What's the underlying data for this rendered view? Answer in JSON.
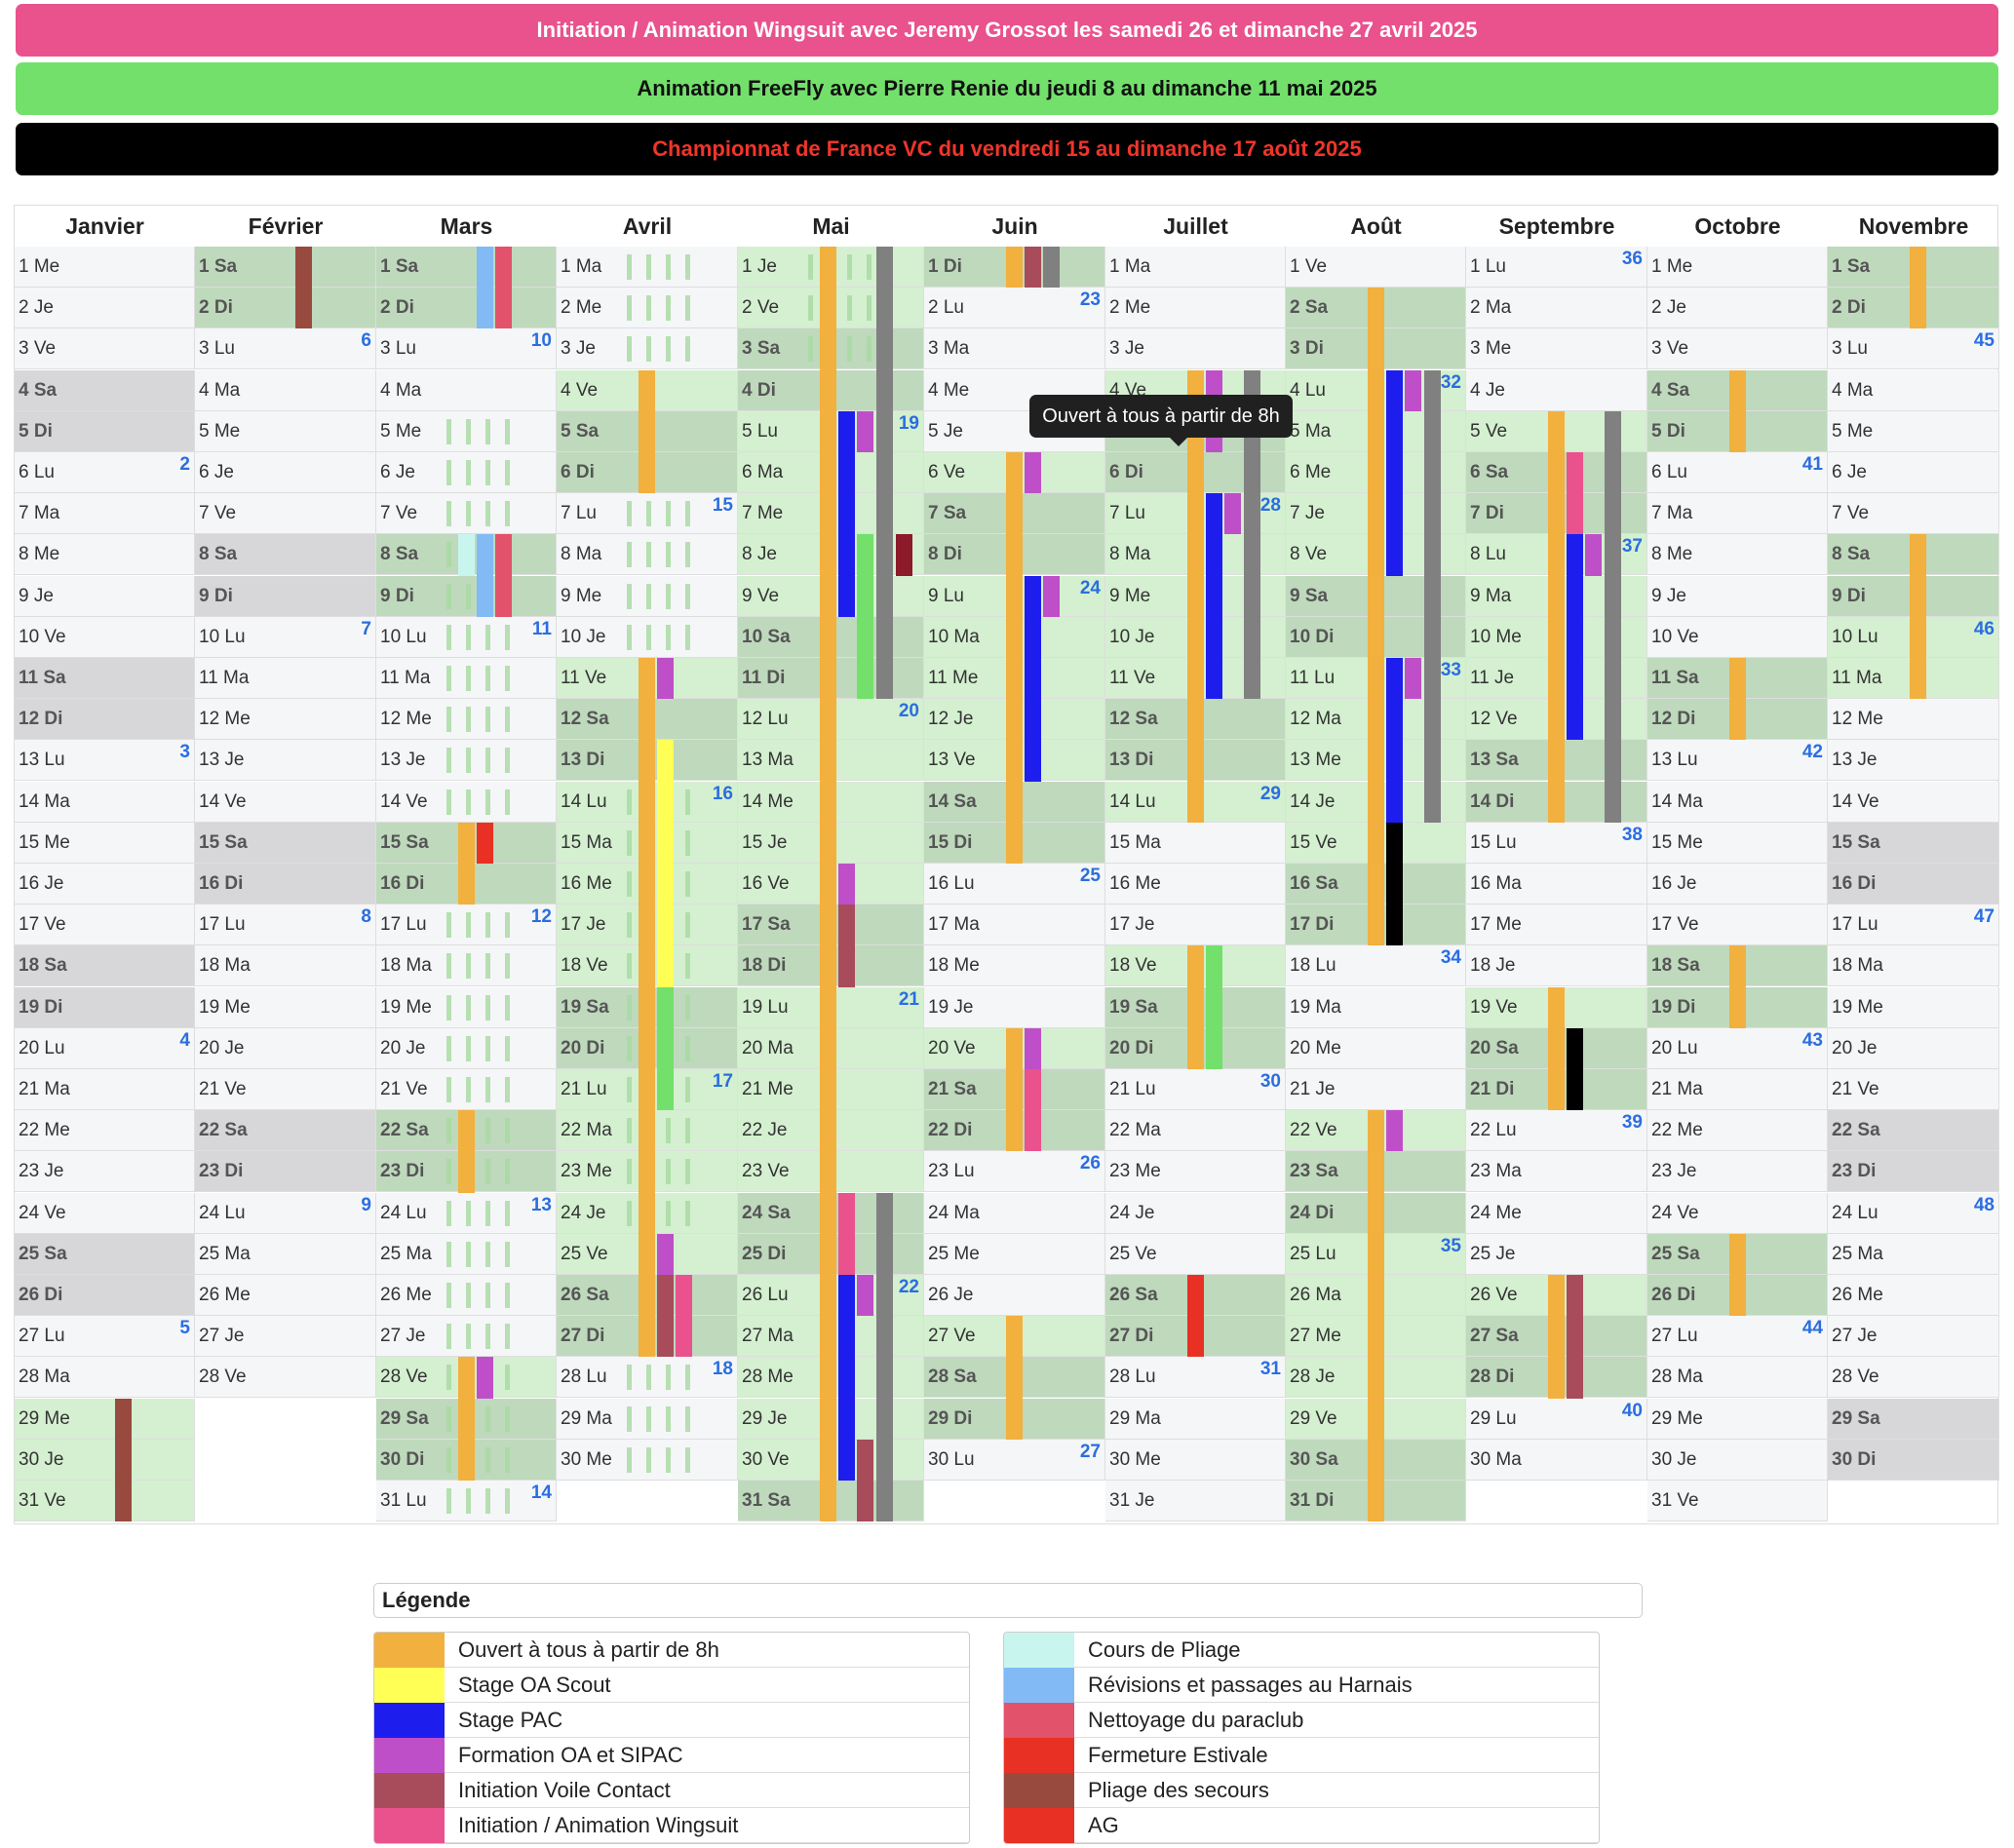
{
  "banners": [
    {
      "text": "Initiation / Animation Wingsuit avec Jeremy Grossot les samedi 26 et dimanche 27 avril 2025",
      "bg": "#e9528d",
      "color": "#ffffff"
    },
    {
      "text": "Animation FreeFly avec Pierre Renie du jeudi 8 au dimanche 11 mai 2025",
      "bg": "#73e06b",
      "color": "#111111"
    },
    {
      "text": "Championnat de France VC du vendredi 15 au dimanche 17 août 2025",
      "bg": "#000000",
      "color": "#f0352b"
    }
  ],
  "tooltip": "Ouvert à tous à partir de 8h",
  "day_abbrevs": [
    "Di",
    "Lu",
    "Ma",
    "Me",
    "Je",
    "Ve",
    "Sa"
  ],
  "months": [
    {
      "name": "Janvier",
      "days": 31,
      "first_dow": 3
    },
    {
      "name": "Février",
      "days": 28,
      "first_dow": 6
    },
    {
      "name": "Mars",
      "days": 31,
      "first_dow": 6
    },
    {
      "name": "Avril",
      "days": 30,
      "first_dow": 2
    },
    {
      "name": "Mai",
      "days": 31,
      "first_dow": 4
    },
    {
      "name": "Juin",
      "days": 30,
      "first_dow": 0
    },
    {
      "name": "Juillet",
      "days": 31,
      "first_dow": 2
    },
    {
      "name": "Août",
      "days": 31,
      "first_dow": 5
    },
    {
      "name": "Septembre",
      "days": 30,
      "first_dow": 1
    },
    {
      "name": "Octobre",
      "days": 31,
      "first_dow": 3
    },
    {
      "name": "Novembre",
      "days": 30,
      "first_dow": 6
    }
  ],
  "week_numbers": [
    [
      [
        6,
        2
      ],
      [
        13,
        3
      ],
      [
        20,
        4
      ],
      [
        27,
        5
      ]
    ],
    [
      [
        3,
        6
      ],
      [
        10,
        7
      ],
      [
        17,
        8
      ],
      [
        24,
        9
      ]
    ],
    [
      [
        3,
        10
      ],
      [
        10,
        11
      ],
      [
        17,
        12
      ],
      [
        24,
        13
      ],
      [
        31,
        14
      ]
    ],
    [
      [
        7,
        15
      ],
      [
        14,
        16
      ],
      [
        21,
        17
      ],
      [
        28,
        18
      ]
    ],
    [
      [
        5,
        19
      ],
      [
        12,
        20
      ],
      [
        19,
        21
      ],
      [
        26,
        22
      ]
    ],
    [
      [
        2,
        23
      ],
      [
        9,
        24
      ],
      [
        16,
        25
      ],
      [
        23,
        26
      ],
      [
        30,
        27
      ]
    ],
    [
      [
        7,
        28
      ],
      [
        14,
        29
      ],
      [
        21,
        30
      ],
      [
        28,
        31
      ]
    ],
    [
      [
        4,
        32
      ],
      [
        11,
        33
      ],
      [
        18,
        34
      ],
      [
        25,
        35
      ]
    ],
    [
      [
        1,
        36
      ],
      [
        8,
        37
      ],
      [
        15,
        38
      ],
      [
        22,
        39
      ],
      [
        29,
        40
      ]
    ],
    [
      [
        6,
        41
      ],
      [
        13,
        42
      ],
      [
        20,
        43
      ],
      [
        27,
        44
      ]
    ],
    [
      [
        3,
        45
      ],
      [
        10,
        46
      ],
      [
        17,
        47
      ],
      [
        24,
        48
      ]
    ]
  ],
  "legend_title": "Légende",
  "legend": [
    {
      "label": "Ouvert à tous à partir de 8h",
      "color": "#f2b03e"
    },
    {
      "label": "Stage OA Scout",
      "color": "#ffff55"
    },
    {
      "label": "Stage PAC",
      "color": "#1d1dee"
    },
    {
      "label": "Formation OA et SIPAC",
      "color": "#bf4fc8"
    },
    {
      "label": "Initiation Voile Contact",
      "color": "#a84b5a"
    },
    {
      "label": "Initiation / Animation Wingsuit",
      "color": "#e9528d"
    },
    {
      "label": "Cours de Pliage",
      "color": "#c8f5ee"
    },
    {
      "label": "Révisions et passages au Harnais",
      "color": "#82baf5"
    },
    {
      "label": "Nettoyage du paraclub",
      "color": "#e2526a"
    },
    {
      "label": "Fermeture Estivale",
      "color": "#e83025"
    },
    {
      "label": "Pliage des secours",
      "color": "#994a3f"
    },
    {
      "label": "AG",
      "color": "#e83025"
    }
  ],
  "events": [
    {
      "c": "#994a3f",
      "m": 0,
      "s": 29,
      "e": 31,
      "t": 1
    },
    {
      "c": "#994a3f",
      "m": 1,
      "s": 1,
      "e": 2,
      "t": 1
    },
    {
      "c": "#82baf5",
      "m": 2,
      "s": 1,
      "e": 2,
      "t": 1
    },
    {
      "c": "#e2526a",
      "m": 2,
      "s": 1,
      "e": 2,
      "t": 2
    },
    {
      "c": "#c8f5ee",
      "m": 2,
      "s": 8,
      "e": 8,
      "t": 0
    },
    {
      "c": "#82baf5",
      "m": 2,
      "s": 8,
      "e": 9,
      "t": 1
    },
    {
      "c": "#e2526a",
      "m": 2,
      "s": 8,
      "e": 9,
      "t": 2
    },
    {
      "c": "#f2b03e",
      "m": 2,
      "s": 15,
      "e": 16,
      "t": 0
    },
    {
      "c": "#e83025",
      "m": 2,
      "s": 15,
      "e": 15,
      "t": 1
    },
    {
      "c": "#f2b03e",
      "m": 2,
      "s": 22,
      "e": 23,
      "t": 0
    },
    {
      "c": "#f2b03e",
      "m": 2,
      "s": 28,
      "e": 30,
      "t": 0
    },
    {
      "c": "#bf4fc8",
      "m": 2,
      "s": 28,
      "e": 28,
      "t": 1
    },
    {
      "c": "#f2b03e",
      "m": 3,
      "s": 4,
      "e": 6,
      "t": 0
    },
    {
      "c": "#f2b03e",
      "m": 3,
      "s": 11,
      "e": 27,
      "t": 0
    },
    {
      "c": "#bf4fc8",
      "m": 3,
      "s": 11,
      "e": 11,
      "t": 1
    },
    {
      "c": "#ffff55",
      "m": 3,
      "s": 13,
      "e": 18,
      "t": 1
    },
    {
      "c": "#73e06b",
      "m": 3,
      "s": 19,
      "e": 21,
      "t": 1
    },
    {
      "c": "#bf4fc8",
      "m": 3,
      "s": 25,
      "e": 25,
      "t": 1
    },
    {
      "c": "#a84b5a",
      "m": 3,
      "s": 26,
      "e": 27,
      "t": 1
    },
    {
      "c": "#e9528d",
      "m": 3,
      "s": 26,
      "e": 27,
      "t": 2
    },
    {
      "c": "#f2b03e",
      "m": 4,
      "s": 1,
      "e": 31,
      "t": 0
    },
    {
      "c": "#808080",
      "m": 4,
      "s": 1,
      "e": 11,
      "t": 3
    },
    {
      "c": "#1d1dee",
      "m": 4,
      "s": 5,
      "e": 9,
      "t": 1
    },
    {
      "c": "#bf4fc8",
      "m": 4,
      "s": 5,
      "e": 5,
      "t": 2
    },
    {
      "c": "#73e06b",
      "m": 4,
      "s": 8,
      "e": 11,
      "t": 2
    },
    {
      "c": "#8c1a28",
      "m": 4,
      "s": 8,
      "e": 8,
      "t": 4
    },
    {
      "c": "#bf4fc8",
      "m": 4,
      "s": 16,
      "e": 16,
      "t": 1
    },
    {
      "c": "#a84b5a",
      "m": 4,
      "s": 17,
      "e": 18,
      "t": 1
    },
    {
      "c": "#e9528d",
      "m": 4,
      "s": 24,
      "e": 25,
      "t": 1
    },
    {
      "c": "#808080",
      "m": 4,
      "s": 24,
      "e": 31,
      "t": 3
    },
    {
      "c": "#1d1dee",
      "m": 4,
      "s": 26,
      "e": 30,
      "t": 1
    },
    {
      "c": "#bf4fc8",
      "m": 4,
      "s": 26,
      "e": 26,
      "t": 2
    },
    {
      "c": "#a84b5a",
      "m": 4,
      "s": 30,
      "e": 31,
      "t": 2
    },
    {
      "c": "#f2b03e",
      "m": 5,
      "s": 1,
      "e": 1,
      "t": 0
    },
    {
      "c": "#a84b5a",
      "m": 5,
      "s": 1,
      "e": 1,
      "t": 1
    },
    {
      "c": "#808080",
      "m": 5,
      "s": 1,
      "e": 1,
      "t": 2
    },
    {
      "c": "#f2b03e",
      "m": 5,
      "s": 6,
      "e": 15,
      "t": 0
    },
    {
      "c": "#bf4fc8",
      "m": 5,
      "s": 6,
      "e": 6,
      "t": 1
    },
    {
      "c": "#1d1dee",
      "m": 5,
      "s": 9,
      "e": 13,
      "t": 1
    },
    {
      "c": "#bf4fc8",
      "m": 5,
      "s": 9,
      "e": 9,
      "t": 2
    },
    {
      "c": "#f2b03e",
      "m": 5,
      "s": 20,
      "e": 22,
      "t": 0
    },
    {
      "c": "#bf4fc8",
      "m": 5,
      "s": 20,
      "e": 20,
      "t": 1
    },
    {
      "c": "#e9528d",
      "m": 5,
      "s": 21,
      "e": 22,
      "t": 1
    },
    {
      "c": "#f2b03e",
      "m": 5,
      "s": 27,
      "e": 29,
      "t": 0
    },
    {
      "c": "#f2b03e",
      "m": 6,
      "s": 4,
      "e": 14,
      "t": 0
    },
    {
      "c": "#bf4fc8",
      "m": 6,
      "s": 4,
      "e": 5,
      "t": 1
    },
    {
      "c": "#808080",
      "m": 6,
      "s": 4,
      "e": 11,
      "t": 3
    },
    {
      "c": "#1d1dee",
      "m": 6,
      "s": 7,
      "e": 11,
      "t": 1
    },
    {
      "c": "#bf4fc8",
      "m": 6,
      "s": 7,
      "e": 7,
      "t": 2
    },
    {
      "c": "#f2b03e",
      "m": 6,
      "s": 18,
      "e": 20,
      "t": 0
    },
    {
      "c": "#73e06b",
      "m": 6,
      "s": 18,
      "e": 20,
      "t": 1
    },
    {
      "c": "#e83025",
      "m": 6,
      "s": 26,
      "e": 27,
      "t": 0
    },
    {
      "c": "#f2b03e",
      "m": 7,
      "s": 2,
      "e": 17,
      "t": 0
    },
    {
      "c": "#1d1dee",
      "m": 7,
      "s": 4,
      "e": 8,
      "t": 1
    },
    {
      "c": "#bf4fc8",
      "m": 7,
      "s": 4,
      "e": 4,
      "t": 2
    },
    {
      "c": "#808080",
      "m": 7,
      "s": 4,
      "e": 14,
      "t": 3
    },
    {
      "c": "#1d1dee",
      "m": 7,
      "s": 11,
      "e": 14,
      "t": 1
    },
    {
      "c": "#bf4fc8",
      "m": 7,
      "s": 11,
      "e": 11,
      "t": 2
    },
    {
      "c": "#000000",
      "m": 7,
      "s": 15,
      "e": 17,
      "t": 1
    },
    {
      "c": "#f2b03e",
      "m": 7,
      "s": 22,
      "e": 31,
      "t": 0
    },
    {
      "c": "#bf4fc8",
      "m": 7,
      "s": 22,
      "e": 22,
      "t": 1
    },
    {
      "c": "#f2b03e",
      "m": 8,
      "s": 5,
      "e": 14,
      "t": 0
    },
    {
      "c": "#e9528d",
      "m": 8,
      "s": 6,
      "e": 7,
      "t": 1
    },
    {
      "c": "#808080",
      "m": 8,
      "s": 5,
      "e": 14,
      "t": 3
    },
    {
      "c": "#1d1dee",
      "m": 8,
      "s": 8,
      "e": 12,
      "t": 1
    },
    {
      "c": "#bf4fc8",
      "m": 8,
      "s": 8,
      "e": 8,
      "t": 2
    },
    {
      "c": "#f2b03e",
      "m": 8,
      "s": 19,
      "e": 21,
      "t": 0
    },
    {
      "c": "#000000",
      "m": 8,
      "s": 20,
      "e": 21,
      "t": 1
    },
    {
      "c": "#f2b03e",
      "m": 8,
      "s": 26,
      "e": 28,
      "t": 0
    },
    {
      "c": "#a84b5a",
      "m": 8,
      "s": 26,
      "e": 28,
      "t": 1
    },
    {
      "c": "#f2b03e",
      "m": 9,
      "s": 4,
      "e": 5,
      "t": 0
    },
    {
      "c": "#f2b03e",
      "m": 9,
      "s": 11,
      "e": 12,
      "t": 0
    },
    {
      "c": "#f2b03e",
      "m": 9,
      "s": 18,
      "e": 19,
      "t": 0
    },
    {
      "c": "#f2b03e",
      "m": 9,
      "s": 25,
      "e": 26,
      "t": 0
    },
    {
      "c": "#f2b03e",
      "m": 10,
      "s": 1,
      "e": 2,
      "t": 0
    },
    {
      "c": "#f2b03e",
      "m": 10,
      "s": 8,
      "e": 11,
      "t": 0
    }
  ],
  "ghost_ranges": [
    {
      "m": 2,
      "s": 5,
      "e": 14
    },
    {
      "m": 2,
      "s": 17,
      "e": 31
    },
    {
      "m": 3,
      "s": 1,
      "e": 3
    },
    {
      "m": 3,
      "s": 7,
      "e": 10
    },
    {
      "m": 3,
      "s": 14,
      "e": 24
    },
    {
      "m": 3,
      "s": 28,
      "e": 30
    },
    {
      "m": 4,
      "s": 1,
      "e": 3
    }
  ]
}
